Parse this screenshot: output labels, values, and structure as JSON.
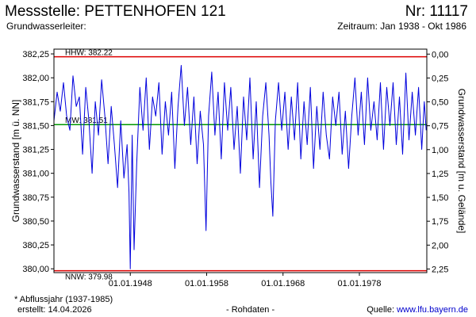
{
  "header": {
    "title": "Messstelle: PETTENHOFEN 121",
    "station_no": "Nr: 11117",
    "aquifer_label": "Grundwasserleiter:",
    "period": "Zeitraum: Jan 1938 - Okt 1986"
  },
  "footer": {
    "footnote": "* Abflussjahr (1937-1985)",
    "created": "erstellt:  14.04.2026",
    "rawdata": "- Rohdaten -",
    "source_prefix": "Quelle: ",
    "source_link": "www.lfu.bayern.de"
  },
  "colors": {
    "series": "#0000dd",
    "reference_extreme": "#dd0000",
    "reference_mean": "#009900",
    "frame": "#000000",
    "plot_background": "#ffffff"
  },
  "chart_data": {
    "type": "line",
    "title": "",
    "ylabel": "Grundwasserstand [m ü. NN]",
    "y2label": "Grundwasserstand [m u. Gelände]",
    "xlabel": "",
    "ylim": [
      379.96,
      382.3
    ],
    "xlim": [
      "1938-01-01",
      "1986-10-31"
    ],
    "y_ticks": [
      380.0,
      380.25,
      380.5,
      380.75,
      381.0,
      381.25,
      381.5,
      381.75,
      382.0,
      382.25
    ],
    "y_tick_labels": [
      "380,00",
      "380,25",
      "380,50",
      "380,75",
      "381,00",
      "381,25",
      "381,50",
      "381,75",
      "382,00",
      "382,25"
    ],
    "y2_ticks_depth": [
      0.0,
      0.25,
      0.5,
      0.75,
      1.0,
      1.25,
      1.5,
      1.75,
      2.0,
      2.25
    ],
    "y2_tick_labels": [
      "0,00",
      "0,25",
      "0,50",
      "0,75",
      "1,00",
      "1,25",
      "1,50",
      "1,75",
      "2,00",
      "2,25"
    ],
    "x_ticks": [
      "1948-01-01",
      "1958-01-01",
      "1968-01-01",
      "1978-01-01"
    ],
    "x_tick_labels": [
      "01.01.1948",
      "01.01.1958",
      "01.01.1968",
      "01.01.1978"
    ],
    "reference_lines": [
      {
        "name": "HHW",
        "label": "HHW: 382.22",
        "value": 382.22,
        "color_key": "reference_extreme"
      },
      {
        "name": "MW",
        "label": "MW: 381.51",
        "value": 381.51,
        "color_key": "reference_mean"
      },
      {
        "name": "NNW",
        "label": "NNW: 379.98",
        "value": 379.98,
        "color_key": "reference_extreme"
      }
    ],
    "grid": false,
    "series": [
      {
        "points": [
          [
            "1938-01-01",
            381.55
          ],
          [
            "1938-06-01",
            381.85
          ],
          [
            "1938-11-01",
            381.65
          ],
          [
            "1939-04-01",
            381.95
          ],
          [
            "1939-09-01",
            381.6
          ],
          [
            "1940-02-01",
            381.45
          ],
          [
            "1940-07-01",
            382.02
          ],
          [
            "1940-12-01",
            381.7
          ],
          [
            "1941-05-01",
            381.8
          ],
          [
            "1941-10-01",
            381.2
          ],
          [
            "1942-03-01",
            381.9
          ],
          [
            "1942-08-01",
            381.55
          ],
          [
            "1943-01-01",
            381.0
          ],
          [
            "1943-06-01",
            381.75
          ],
          [
            "1943-11-01",
            381.4
          ],
          [
            "1944-04-01",
            381.98
          ],
          [
            "1944-09-01",
            381.6
          ],
          [
            "1945-02-01",
            381.1
          ],
          [
            "1945-07-01",
            381.7
          ],
          [
            "1945-12-01",
            381.3
          ],
          [
            "1946-05-01",
            380.85
          ],
          [
            "1946-10-01",
            381.55
          ],
          [
            "1947-03-01",
            380.95
          ],
          [
            "1947-08-01",
            381.3
          ],
          [
            "1947-11-01",
            380.8
          ],
          [
            "1948-01-01",
            380.0
          ],
          [
            "1948-04-01",
            381.4
          ],
          [
            "1948-07-01",
            380.2
          ],
          [
            "1948-11-01",
            381.1
          ],
          [
            "1949-04-01",
            381.9
          ],
          [
            "1949-09-01",
            381.45
          ],
          [
            "1950-02-01",
            382.0
          ],
          [
            "1950-07-01",
            381.25
          ],
          [
            "1950-12-01",
            381.8
          ],
          [
            "1951-05-01",
            381.6
          ],
          [
            "1951-10-01",
            381.95
          ],
          [
            "1952-03-01",
            381.2
          ],
          [
            "1952-08-01",
            381.75
          ],
          [
            "1953-01-01",
            381.4
          ],
          [
            "1953-06-01",
            381.85
          ],
          [
            "1953-11-01",
            381.05
          ],
          [
            "1954-04-01",
            381.7
          ],
          [
            "1954-09-01",
            382.13
          ],
          [
            "1955-02-01",
            381.5
          ],
          [
            "1955-07-01",
            381.9
          ],
          [
            "1955-12-01",
            381.3
          ],
          [
            "1956-05-01",
            381.8
          ],
          [
            "1956-10-01",
            381.1
          ],
          [
            "1957-03-01",
            381.65
          ],
          [
            "1957-08-01",
            381.3
          ],
          [
            "1957-12-01",
            380.4
          ],
          [
            "1958-04-01",
            381.6
          ],
          [
            "1958-09-01",
            382.06
          ],
          [
            "1959-02-01",
            381.4
          ],
          [
            "1959-07-01",
            381.85
          ],
          [
            "1959-12-01",
            381.15
          ],
          [
            "1960-05-01",
            381.95
          ],
          [
            "1960-10-01",
            381.45
          ],
          [
            "1961-03-01",
            381.9
          ],
          [
            "1961-08-01",
            381.25
          ],
          [
            "1962-01-01",
            381.7
          ],
          [
            "1962-06-01",
            381.0
          ],
          [
            "1962-11-01",
            381.8
          ],
          [
            "1963-04-01",
            381.35
          ],
          [
            "1963-09-01",
            382.0
          ],
          [
            "1964-02-01",
            381.15
          ],
          [
            "1964-07-01",
            381.75
          ],
          [
            "1964-12-01",
            380.85
          ],
          [
            "1965-05-01",
            381.6
          ],
          [
            "1965-10-01",
            381.95
          ],
          [
            "1966-03-01",
            381.4
          ],
          [
            "1966-06-01",
            380.9
          ],
          [
            "1966-09-01",
            380.55
          ],
          [
            "1967-01-01",
            381.55
          ],
          [
            "1967-06-01",
            381.95
          ],
          [
            "1967-11-01",
            381.45
          ],
          [
            "1968-04-01",
            381.85
          ],
          [
            "1968-09-01",
            381.25
          ],
          [
            "1969-02-01",
            381.8
          ],
          [
            "1969-07-01",
            381.35
          ],
          [
            "1969-12-01",
            381.95
          ],
          [
            "1970-05-01",
            381.15
          ],
          [
            "1970-10-01",
            381.75
          ],
          [
            "1971-03-01",
            381.3
          ],
          [
            "1971-08-01",
            381.9
          ],
          [
            "1972-01-01",
            381.05
          ],
          [
            "1972-06-01",
            381.7
          ],
          [
            "1972-11-01",
            381.25
          ],
          [
            "1973-04-01",
            381.85
          ],
          [
            "1973-09-01",
            381.4
          ],
          [
            "1974-02-01",
            381.15
          ],
          [
            "1974-07-01",
            381.8
          ],
          [
            "1974-12-01",
            381.5
          ],
          [
            "1975-05-01",
            381.85
          ],
          [
            "1975-10-01",
            381.2
          ],
          [
            "1976-03-01",
            381.65
          ],
          [
            "1976-08-01",
            381.05
          ],
          [
            "1977-01-01",
            381.6
          ],
          [
            "1977-06-01",
            382.0
          ],
          [
            "1977-11-01",
            381.4
          ],
          [
            "1978-04-01",
            381.85
          ],
          [
            "1978-09-01",
            381.3
          ],
          [
            "1979-02-01",
            382.0
          ],
          [
            "1979-07-01",
            381.45
          ],
          [
            "1979-12-01",
            381.75
          ],
          [
            "1980-05-01",
            381.35
          ],
          [
            "1980-10-01",
            381.95
          ],
          [
            "1981-03-01",
            381.25
          ],
          [
            "1981-08-01",
            381.9
          ],
          [
            "1982-01-01",
            381.5
          ],
          [
            "1982-06-01",
            381.95
          ],
          [
            "1982-11-01",
            381.3
          ],
          [
            "1983-04-01",
            381.8
          ],
          [
            "1983-09-01",
            381.2
          ],
          [
            "1984-02-01",
            382.05
          ],
          [
            "1984-07-01",
            381.35
          ],
          [
            "1984-12-01",
            381.85
          ],
          [
            "1985-05-01",
            381.4
          ],
          [
            "1985-10-01",
            381.9
          ],
          [
            "1986-03-01",
            381.25
          ],
          [
            "1986-07-01",
            381.75
          ],
          [
            "1986-10-01",
            381.45
          ]
        ]
      }
    ]
  }
}
